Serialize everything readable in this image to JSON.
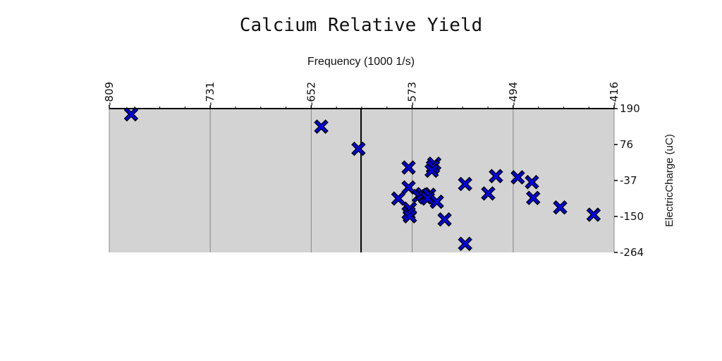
{
  "chart_data": {
    "type": "scatter",
    "title": "Calcium Relative Yield",
    "xlabel": "Frequency (1000 1/s)",
    "ylabel": "ElectricCharge (uC)",
    "xlim": [
      -809,
      -416
    ],
    "ylim": [
      -264,
      190
    ],
    "xticks": [
      "-809",
      "-731",
      "-652",
      "-573",
      "-494",
      "-416"
    ],
    "yticks": [
      "190",
      "76",
      "-37",
      "-150",
      "-264"
    ],
    "x_axis_position": "top",
    "y_axis_position": "right",
    "grid": "vertical",
    "reference_line_x": -613,
    "marker": "x",
    "colors": {
      "background": "#d3d3d3",
      "marker_fill": "#0000ee",
      "marker_edge": "#000000",
      "gridline": "#888888"
    },
    "points": [
      {
        "x": -792,
        "y": 172
      },
      {
        "x": -644,
        "y": 133
      },
      {
        "x": -615,
        "y": 63
      },
      {
        "x": -576,
        "y": 4
      },
      {
        "x": -556,
        "y": 16
      },
      {
        "x": -557,
        "y": 6
      },
      {
        "x": -558,
        "y": -6
      },
      {
        "x": -576,
        "y": -59
      },
      {
        "x": -584,
        "y": -94
      },
      {
        "x": -568,
        "y": -86
      },
      {
        "x": -565,
        "y": -80
      },
      {
        "x": -563,
        "y": -90
      },
      {
        "x": -560,
        "y": -82
      },
      {
        "x": -561,
        "y": -94
      },
      {
        "x": -575,
        "y": -126
      },
      {
        "x": -576,
        "y": -140
      },
      {
        "x": -575,
        "y": -150
      },
      {
        "x": -554,
        "y": -104
      },
      {
        "x": -548,
        "y": -160
      },
      {
        "x": -532,
        "y": -48
      },
      {
        "x": -514,
        "y": -78
      },
      {
        "x": -508,
        "y": -23
      },
      {
        "x": -491,
        "y": -27
      },
      {
        "x": -480,
        "y": -42
      },
      {
        "x": -479,
        "y": -92
      },
      {
        "x": -458,
        "y": -122
      },
      {
        "x": -432,
        "y": -145
      },
      {
        "x": -532,
        "y": -237
      }
    ]
  }
}
